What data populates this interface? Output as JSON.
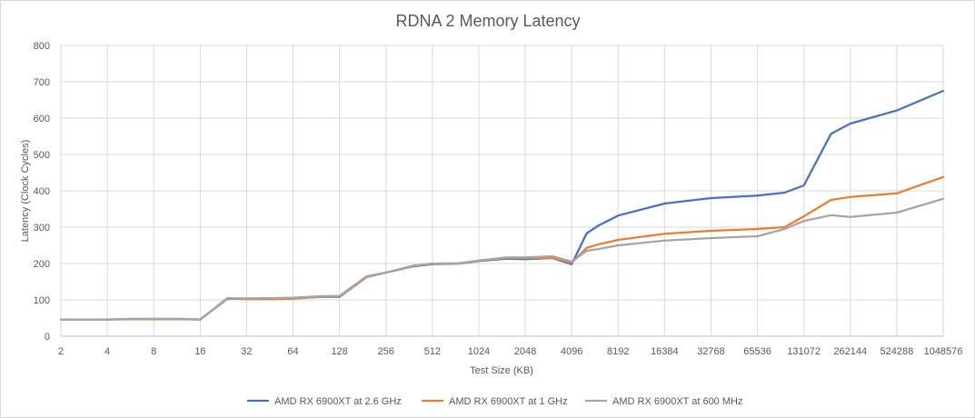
{
  "chart_data": {
    "type": "line",
    "title": "RDNA 2 Memory Latency",
    "xlabel": "Test Size (KB)",
    "ylabel": "Latency (Clock Cycles)",
    "ylim": [
      0,
      800
    ],
    "yticks": [
      0,
      100,
      200,
      300,
      400,
      500,
      600,
      700,
      800
    ],
    "xscale": "log2",
    "xlim": [
      2,
      1048576
    ],
    "xticks": [
      2,
      4,
      8,
      16,
      32,
      64,
      128,
      256,
      512,
      1024,
      2048,
      4096,
      8192,
      16384,
      32768,
      65536,
      131072,
      262144,
      524288,
      1048576
    ],
    "grid": true,
    "legend_position": "bottom",
    "x": [
      2,
      4,
      6,
      8,
      12,
      16,
      24,
      32,
      48,
      64,
      96,
      128,
      192,
      256,
      384,
      512,
      768,
      1024,
      1536,
      2048,
      3072,
      4096,
      5120,
      6144,
      8192,
      16384,
      32768,
      65536,
      98304,
      131072,
      196608,
      262144,
      524288,
      1048576
    ],
    "series": [
      {
        "name": "AMD RX 6900XT at 2.6 GHz",
        "color": "#4472c4",
        "values": [
          46,
          46,
          47,
          47,
          47,
          46,
          103,
          103,
          104,
          104,
          108,
          108,
          163,
          175,
          192,
          198,
          200,
          207,
          213,
          212,
          215,
          198,
          283,
          305,
          332,
          365,
          380,
          387,
          395,
          415,
          557,
          585,
          621,
          675
        ]
      },
      {
        "name": "AMD RX 6900XT at 1 GHz",
        "color": "#ed7d31",
        "values": [
          46,
          46,
          47,
          47,
          47,
          46,
          104,
          102,
          102,
          103,
          109,
          109,
          163,
          175,
          193,
          199,
          200,
          208,
          215,
          215,
          215,
          202,
          243,
          253,
          265,
          282,
          290,
          295,
          300,
          330,
          375,
          383,
          393,
          438
        ]
      },
      {
        "name": "AMD RX 6900XT at 600 MHz",
        "color": "#a5a5a5",
        "values": [
          46,
          46,
          48,
          48,
          48,
          46,
          105,
          104,
          105,
          106,
          110,
          111,
          165,
          175,
          194,
          200,
          201,
          208,
          217,
          217,
          220,
          205,
          235,
          240,
          250,
          263,
          270,
          275,
          295,
          317,
          333,
          328,
          340,
          378
        ]
      }
    ]
  }
}
